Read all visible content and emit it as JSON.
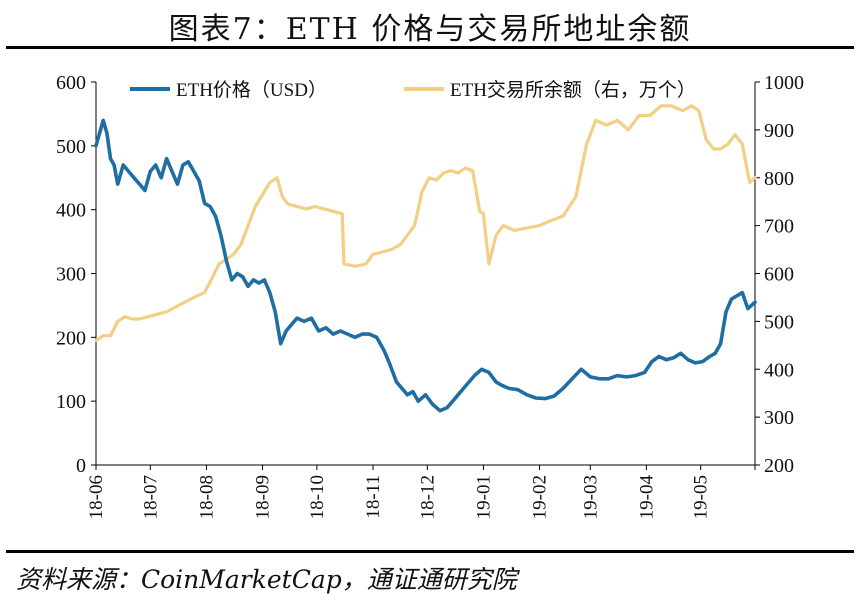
{
  "title": "图表7：ETH 价格与交易所地址余额",
  "source": "资料来源：CoinMarketCap，通证通研究院",
  "colors": {
    "price": "#1f6ea3",
    "balance": "#f2cf85",
    "axis": "#000000"
  },
  "chart_data": {
    "type": "line",
    "categories": [
      "18-06",
      "18-07",
      "18-08",
      "18-09",
      "18-10",
      "18-11",
      "18-12",
      "19-01",
      "19-02",
      "19-03",
      "19-04",
      "19-05"
    ],
    "x_range": [
      "2018-06-01",
      "2019-05-31"
    ],
    "y_left": {
      "ticks": [
        "0",
        "100",
        "200",
        "300",
        "400",
        "500",
        "600"
      ],
      "ylim": [
        0,
        600
      ]
    },
    "y_right": {
      "ticks": [
        "200",
        "300",
        "400",
        "500",
        "600",
        "700",
        "800",
        "900",
        "1000"
      ],
      "ylim": [
        200,
        1000
      ]
    },
    "legend_position": "top",
    "grid": false,
    "series": [
      {
        "name": "ETH价格（USD）",
        "axis": "left",
        "x": [
          "2018-06-01",
          "2018-06-03",
          "2018-06-05",
          "2018-06-07",
          "2018-06-09",
          "2018-06-11",
          "2018-06-13",
          "2018-06-16",
          "2018-06-19",
          "2018-06-22",
          "2018-06-25",
          "2018-06-28",
          "2018-07-01",
          "2018-07-04",
          "2018-07-07",
          "2018-07-10",
          "2018-07-13",
          "2018-07-16",
          "2018-07-19",
          "2018-07-22",
          "2018-07-25",
          "2018-07-28",
          "2018-07-31",
          "2018-08-03",
          "2018-08-06",
          "2018-08-09",
          "2018-08-12",
          "2018-08-15",
          "2018-08-18",
          "2018-08-21",
          "2018-08-24",
          "2018-08-27",
          "2018-08-30",
          "2018-09-02",
          "2018-09-05",
          "2018-09-08",
          "2018-09-11",
          "2018-09-14",
          "2018-09-17",
          "2018-09-20",
          "2018-09-24",
          "2018-09-28",
          "2018-10-02",
          "2018-10-06",
          "2018-10-10",
          "2018-10-14",
          "2018-10-18",
          "2018-10-22",
          "2018-10-26",
          "2018-10-30",
          "2018-11-03",
          "2018-11-07",
          "2018-11-10",
          "2018-11-14",
          "2018-11-17",
          "2018-11-20",
          "2018-11-23",
          "2018-11-26",
          "2018-11-30",
          "2018-12-04",
          "2018-12-08",
          "2018-12-12",
          "2018-12-15",
          "2018-12-18",
          "2018-12-21",
          "2018-12-24",
          "2018-12-27",
          "2018-12-31",
          "2019-01-04",
          "2019-01-08",
          "2019-01-11",
          "2019-01-15",
          "2019-01-20",
          "2019-01-25",
          "2019-01-30",
          "2019-02-04",
          "2019-02-09",
          "2019-02-14",
          "2019-02-19",
          "2019-02-24",
          "2019-03-01",
          "2019-03-06",
          "2019-03-11",
          "2019-03-16",
          "2019-03-21",
          "2019-03-26",
          "2019-03-31",
          "2019-04-04",
          "2019-04-08",
          "2019-04-12",
          "2019-04-16",
          "2019-04-20",
          "2019-04-24",
          "2019-04-28",
          "2019-05-02",
          "2019-05-06",
          "2019-05-09",
          "2019-05-12",
          "2019-05-15",
          "2019-05-18",
          "2019-05-21",
          "2019-05-24",
          "2019-05-27",
          "2019-05-31"
        ],
        "values": [
          500,
          520,
          540,
          520,
          480,
          470,
          440,
          470,
          460,
          450,
          440,
          430,
          460,
          470,
          450,
          480,
          460,
          440,
          470,
          475,
          460,
          445,
          410,
          405,
          390,
          360,
          320,
          290,
          300,
          295,
          280,
          290,
          285,
          290,
          270,
          240,
          190,
          210,
          220,
          230,
          225,
          230,
          210,
          215,
          205,
          210,
          205,
          200,
          205,
          205,
          200,
          180,
          160,
          130,
          120,
          110,
          115,
          100,
          110,
          95,
          85,
          90,
          100,
          110,
          120,
          130,
          140,
          150,
          145,
          130,
          125,
          120,
          118,
          110,
          105,
          104,
          108,
          120,
          135,
          150,
          138,
          135,
          135,
          140,
          138,
          140,
          145,
          162,
          170,
          165,
          168,
          175,
          165,
          160,
          162,
          170,
          175,
          190,
          240,
          260,
          265,
          270,
          245,
          255
        ]
      },
      {
        "name": "ETH交易所余额（右，万个）",
        "axis": "right",
        "x": [
          "2018-06-01",
          "2018-06-05",
          "2018-06-09",
          "2018-06-13",
          "2018-06-17",
          "2018-06-21",
          "2018-06-25",
          "2018-06-30",
          "2018-07-05",
          "2018-07-10",
          "2018-07-15",
          "2018-07-20",
          "2018-07-25",
          "2018-07-31",
          "2018-08-04",
          "2018-08-08",
          "2018-08-12",
          "2018-08-16",
          "2018-08-20",
          "2018-08-24",
          "2018-08-28",
          "2018-09-01",
          "2018-09-05",
          "2018-09-09",
          "2018-09-12",
          "2018-09-15",
          "2018-09-20",
          "2018-09-25",
          "2018-09-30",
          "2018-10-05",
          "2018-10-10",
          "2018-10-15",
          "2018-10-16",
          "2018-10-22",
          "2018-10-28",
          "2018-11-01",
          "2018-11-06",
          "2018-11-11",
          "2018-11-16",
          "2018-11-20",
          "2018-11-24",
          "2018-11-28",
          "2018-12-02",
          "2018-12-06",
          "2018-12-10",
          "2018-12-14",
          "2018-12-18",
          "2018-12-22",
          "2018-12-26",
          "2018-12-30",
          "2019-01-01",
          "2019-01-04",
          "2019-01-08",
          "2019-01-12",
          "2019-01-18",
          "2019-01-25",
          "2019-02-01",
          "2019-02-07",
          "2019-02-14",
          "2019-02-21",
          "2019-02-27",
          "2019-03-04",
          "2019-03-10",
          "2019-03-16",
          "2019-03-22",
          "2019-03-28",
          "2019-04-03",
          "2019-04-09",
          "2019-04-15",
          "2019-04-21",
          "2019-04-26",
          "2019-04-30",
          "2019-05-04",
          "2019-05-08",
          "2019-05-12",
          "2019-05-16",
          "2019-05-20",
          "2019-05-24",
          "2019-05-28",
          "2019-05-31"
        ],
        "values": [
          460,
          470,
          470,
          500,
          510,
          505,
          505,
          510,
          515,
          520,
          530,
          540,
          550,
          560,
          590,
          620,
          630,
          640,
          660,
          700,
          740,
          765,
          790,
          800,
          760,
          745,
          740,
          735,
          740,
          735,
          730,
          725,
          620,
          615,
          620,
          640,
          645,
          650,
          660,
          680,
          700,
          770,
          800,
          795,
          810,
          815,
          810,
          820,
          815,
          730,
          725,
          620,
          680,
          700,
          690,
          695,
          700,
          710,
          720,
          760,
          870,
          920,
          910,
          920,
          900,
          930,
          930,
          950,
          950,
          940,
          950,
          940,
          880,
          860,
          860,
          870,
          890,
          870,
          790,
          800
        ]
      }
    ]
  }
}
